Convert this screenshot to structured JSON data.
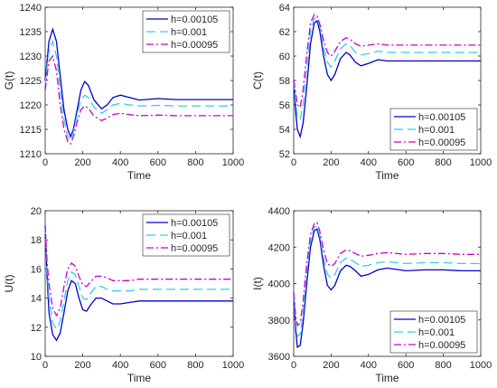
{
  "chart_data": [
    {
      "type": "line",
      "xlabel": "Time",
      "ylabel": "G(t)",
      "xlim": [
        0,
        1000
      ],
      "ylim": [
        1210,
        1240
      ],
      "xticks": [
        0,
        200,
        400,
        600,
        800,
        1000
      ],
      "yticks": [
        1210,
        1215,
        1220,
        1225,
        1230,
        1235,
        1240
      ],
      "legend": "top-right",
      "series": [
        {
          "name": "h=0.00105",
          "color": "#0000cc",
          "dash": "solid",
          "x": [
            0,
            10,
            20,
            40,
            60,
            80,
            100,
            120,
            135,
            150,
            170,
            190,
            210,
            230,
            260,
            300,
            330,
            360,
            400,
            450,
            500,
            600,
            700,
            800,
            900,
            1000
          ],
          "y": [
            1225,
            1229,
            1233,
            1235.5,
            1233,
            1226,
            1219,
            1215,
            1213.5,
            1215,
            1219,
            1223,
            1224.8,
            1224,
            1221,
            1219.2,
            1220,
            1221.5,
            1222,
            1221.5,
            1221,
            1221.3,
            1221.1,
            1221.1,
            1221.1,
            1221.1
          ]
        },
        {
          "name": "h=0.001",
          "color": "#33ccee",
          "dash": "10,5",
          "x": [
            0,
            10,
            20,
            40,
            60,
            80,
            100,
            120,
            135,
            150,
            170,
            190,
            210,
            230,
            260,
            300,
            330,
            360,
            400,
            450,
            500,
            600,
            700,
            800,
            900,
            1000
          ],
          "y": [
            1224,
            1228,
            1231,
            1233,
            1230,
            1223,
            1217,
            1213.5,
            1212.8,
            1214.5,
            1218,
            1221,
            1222,
            1221.5,
            1219.5,
            1218.3,
            1219,
            1220,
            1220.3,
            1220,
            1219.8,
            1219.9,
            1219.8,
            1219.8,
            1219.8,
            1219.8
          ]
        },
        {
          "name": "h=0.00095",
          "color": "#cc00cc",
          "dash": "8,3,2,3",
          "x": [
            0,
            10,
            20,
            40,
            60,
            80,
            100,
            120,
            135,
            150,
            170,
            190,
            210,
            230,
            260,
            300,
            330,
            360,
            400,
            450,
            500,
            600,
            700,
            800,
            900,
            1000
          ],
          "y": [
            1223,
            1226,
            1229,
            1230,
            1227,
            1220,
            1215,
            1212.5,
            1212,
            1213.5,
            1216.5,
            1219,
            1219.8,
            1219.3,
            1217.7,
            1216.8,
            1217.3,
            1218,
            1218.3,
            1218,
            1217.8,
            1217.9,
            1217.8,
            1217.8,
            1217.8,
            1217.8
          ]
        }
      ]
    },
    {
      "type": "line",
      "xlabel": "Time",
      "ylabel": "C(t)",
      "xlim": [
        0,
        1000
      ],
      "ylim": [
        52,
        64
      ],
      "xticks": [
        0,
        200,
        400,
        600,
        800,
        1000
      ],
      "yticks": [
        52,
        54,
        56,
        58,
        60,
        62,
        64
      ],
      "legend": "bottom-right",
      "series": [
        {
          "name": "h=0.00105",
          "color": "#0000cc",
          "dash": "solid",
          "x": [
            0,
            10,
            20,
            35,
            50,
            70,
            90,
            110,
            125,
            140,
            160,
            180,
            200,
            220,
            250,
            280,
            300,
            330,
            360,
            400,
            450,
            500,
            600,
            700,
            800,
            900,
            1000
          ],
          "y": [
            58,
            55.5,
            54,
            53.4,
            54.5,
            57.5,
            61,
            62.7,
            62.9,
            62,
            60,
            58.5,
            58,
            58.5,
            59.8,
            60.3,
            60.1,
            59.5,
            59.2,
            59.4,
            59.7,
            59.6,
            59.6,
            59.6,
            59.6,
            59.6,
            59.6
          ]
        },
        {
          "name": "h=0.001",
          "color": "#33ccee",
          "dash": "10,5",
          "x": [
            0,
            10,
            20,
            35,
            50,
            70,
            90,
            110,
            125,
            140,
            160,
            180,
            200,
            220,
            250,
            280,
            300,
            330,
            360,
            400,
            450,
            500,
            600,
            700,
            800,
            900,
            1000
          ],
          "y": [
            58,
            56.3,
            55,
            54.8,
            56,
            59,
            62,
            63.1,
            63.1,
            62.4,
            60.7,
            59.5,
            59.1,
            59.6,
            60.6,
            61,
            60.9,
            60.3,
            60.1,
            60.2,
            60.4,
            60.3,
            60.3,
            60.3,
            60.3,
            60.3,
            60.3
          ]
        },
        {
          "name": "h=0.00095",
          "color": "#cc00cc",
          "dash": "8,3,2,3",
          "x": [
            0,
            10,
            20,
            35,
            50,
            70,
            90,
            110,
            125,
            140,
            160,
            180,
            200,
            220,
            250,
            280,
            300,
            330,
            360,
            400,
            450,
            500,
            600,
            700,
            800,
            900,
            1000
          ],
          "y": [
            58,
            57,
            56,
            55.8,
            57.2,
            60.2,
            62.7,
            63.4,
            63.3,
            62.6,
            61.3,
            60.3,
            60,
            60.4,
            61.2,
            61.5,
            61.4,
            61,
            60.8,
            60.9,
            61,
            60.9,
            60.9,
            60.9,
            60.9,
            60.9,
            60.9
          ]
        }
      ]
    },
    {
      "type": "line",
      "xlabel": "Time",
      "ylabel": "U(t)",
      "xlim": [
        0,
        1000
      ],
      "ylim": [
        10,
        20
      ],
      "xticks": [
        0,
        200,
        400,
        600,
        800,
        1000
      ],
      "yticks": [
        10,
        12,
        14,
        16,
        18,
        20
      ],
      "legend": "top-right",
      "series": [
        {
          "name": "h=0.00105",
          "color": "#0000cc",
          "dash": "solid",
          "x": [
            0,
            10,
            20,
            40,
            60,
            80,
            100,
            120,
            140,
            160,
            180,
            200,
            220,
            240,
            270,
            300,
            330,
            360,
            400,
            450,
            500,
            600,
            700,
            800,
            900,
            1000
          ],
          "y": [
            19,
            15.5,
            13,
            11.5,
            11.1,
            11.6,
            13,
            14.5,
            15.2,
            15,
            14,
            13.2,
            13.1,
            13.5,
            14,
            14,
            13.8,
            13.6,
            13.6,
            13.7,
            13.8,
            13.8,
            13.8,
            13.8,
            13.8,
            13.8
          ]
        },
        {
          "name": "h=0.001",
          "color": "#33ccee",
          "dash": "10,5",
          "x": [
            0,
            10,
            20,
            40,
            60,
            80,
            100,
            120,
            140,
            160,
            180,
            200,
            220,
            240,
            270,
            300,
            330,
            360,
            400,
            450,
            500,
            600,
            700,
            800,
            900,
            1000
          ],
          "y": [
            19,
            16,
            14,
            12.3,
            11.9,
            12.4,
            13.8,
            15.2,
            15.8,
            15.6,
            14.8,
            14,
            13.9,
            14.3,
            14.8,
            14.8,
            14.6,
            14.5,
            14.5,
            14.5,
            14.6,
            14.6,
            14.6,
            14.6,
            14.6,
            14.6
          ]
        },
        {
          "name": "h=0.00095",
          "color": "#cc00cc",
          "dash": "8,3,2,3",
          "x": [
            0,
            10,
            20,
            40,
            60,
            80,
            100,
            120,
            140,
            160,
            180,
            200,
            220,
            240,
            270,
            300,
            330,
            360,
            400,
            450,
            500,
            600,
            700,
            800,
            900,
            1000
          ],
          "y": [
            19,
            16.5,
            15,
            13.3,
            12.8,
            13.3,
            14.8,
            16,
            16.4,
            16.2,
            15.5,
            14.9,
            14.8,
            15.1,
            15.5,
            15.5,
            15.4,
            15.2,
            15.2,
            15.2,
            15.3,
            15.3,
            15.3,
            15.3,
            15.3,
            15.3
          ]
        }
      ]
    },
    {
      "type": "line",
      "xlabel": "Time",
      "ylabel": "I(t)",
      "xlim": [
        0,
        1000
      ],
      "ylim": [
        3600,
        4400
      ],
      "xticks": [
        0,
        200,
        400,
        600,
        800,
        1000
      ],
      "yticks": [
        3600,
        3800,
        4000,
        4200,
        4400
      ],
      "legend": "bottom-right",
      "series": [
        {
          "name": "h=0.00105",
          "color": "#0000cc",
          "dash": "solid",
          "x": [
            0,
            10,
            20,
            35,
            50,
            70,
            90,
            110,
            125,
            140,
            160,
            180,
            200,
            220,
            250,
            280,
            300,
            330,
            360,
            400,
            450,
            500,
            600,
            700,
            800,
            900,
            1000
          ],
          "y": [
            3950,
            3750,
            3650,
            3660,
            3780,
            4000,
            4200,
            4290,
            4300,
            4240,
            4100,
            3990,
            3965,
            3990,
            4070,
            4100,
            4095,
            4070,
            4040,
            4050,
            4075,
            4085,
            4070,
            4075,
            4075,
            4070,
            4070
          ]
        },
        {
          "name": "h=0.001",
          "color": "#33ccee",
          "dash": "10,5",
          "x": [
            0,
            10,
            20,
            35,
            50,
            70,
            90,
            110,
            125,
            140,
            160,
            180,
            200,
            220,
            250,
            280,
            300,
            330,
            360,
            400,
            450,
            500,
            600,
            700,
            800,
            900,
            1000
          ],
          "y": [
            3950,
            3790,
            3710,
            3720,
            3840,
            4060,
            4240,
            4310,
            4315,
            4260,
            4140,
            4050,
            4030,
            4050,
            4115,
            4140,
            4135,
            4115,
            4095,
            4100,
            4115,
            4120,
            4110,
            4115,
            4115,
            4110,
            4110
          ]
        },
        {
          "name": "h=0.00095",
          "color": "#cc00cc",
          "dash": "8,3,2,3",
          "x": [
            0,
            10,
            20,
            35,
            50,
            70,
            90,
            110,
            125,
            140,
            160,
            180,
            200,
            220,
            250,
            280,
            300,
            330,
            360,
            400,
            450,
            500,
            600,
            700,
            800,
            900,
            1000
          ],
          "y": [
            3950,
            3830,
            3770,
            3785,
            3900,
            4110,
            4270,
            4330,
            4335,
            4285,
            4185,
            4110,
            4095,
            4110,
            4165,
            4185,
            4180,
            4165,
            4150,
            4155,
            4165,
            4170,
            4160,
            4165,
            4165,
            4160,
            4160
          ]
        }
      ]
    }
  ]
}
